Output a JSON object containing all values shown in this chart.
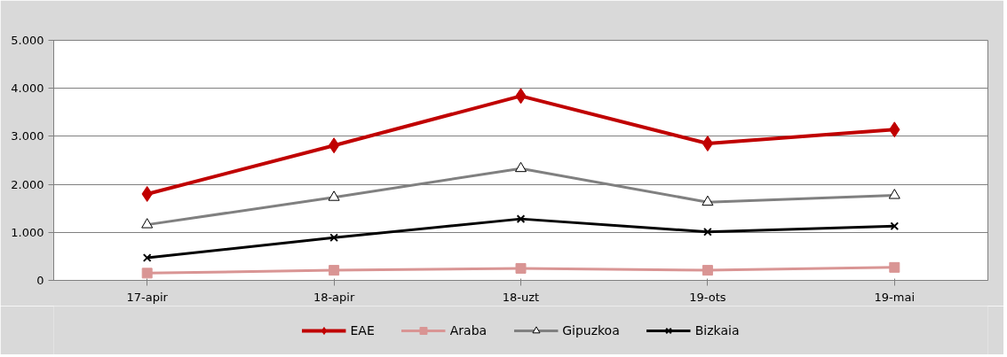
{
  "chart_data": {
    "type": "line",
    "categories": [
      "17-apir",
      "18-apir",
      "18-uzt",
      "19-ots",
      "19-mai"
    ],
    "series": [
      {
        "name": "EAE",
        "color": "#c00000",
        "marker": "diamond",
        "values": [
          1800,
          2810,
          3840,
          2850,
          3140
        ]
      },
      {
        "name": "Araba",
        "color": "#d99594",
        "marker": "square",
        "values": [
          150,
          210,
          250,
          210,
          270
        ]
      },
      {
        "name": "Gipuzkoa",
        "color": "#808080",
        "marker": "triangle",
        "values": [
          1160,
          1730,
          2330,
          1630,
          1770
        ]
      },
      {
        "name": "Bizkaia",
        "color": "#000000",
        "marker": "cross",
        "values": [
          470,
          890,
          1280,
          1010,
          1130
        ]
      }
    ],
    "ylim": [
      0,
      5000
    ],
    "yticks": [
      {
        "value": 0,
        "label": "0"
      },
      {
        "value": 1000,
        "label": "1.000"
      },
      {
        "value": 2000,
        "label": "2.000"
      },
      {
        "value": 3000,
        "label": "3.000"
      },
      {
        "value": 4000,
        "label": "4.000"
      },
      {
        "value": 5000,
        "label": "5.000"
      }
    ],
    "grid": "y",
    "legend": "bottom",
    "line_style": "solid"
  }
}
